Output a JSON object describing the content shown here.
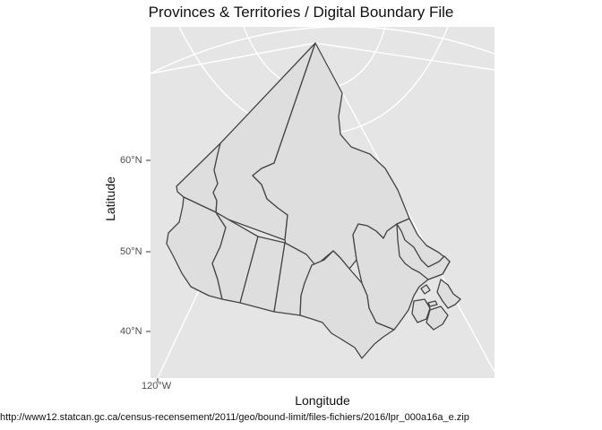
{
  "title": "Provinces & Territories / Digital Boundary File",
  "x_axis_title": "Longitude",
  "y_axis_title": "Latitude",
  "y_ticks": [
    "60°N",
    "50°N",
    "40°N"
  ],
  "x_ticks": [
    "120°W"
  ],
  "caption": "http://www12.statcan.gc.ca/census-recensement/2011/geo/bound-limit/files-fichiers/2016/lpr_000a16a_e.zip",
  "colors": {
    "panel_background": "#e5e5e5",
    "grid": "#ffffff",
    "land_fill": "#dedede",
    "border": "#454545"
  }
}
